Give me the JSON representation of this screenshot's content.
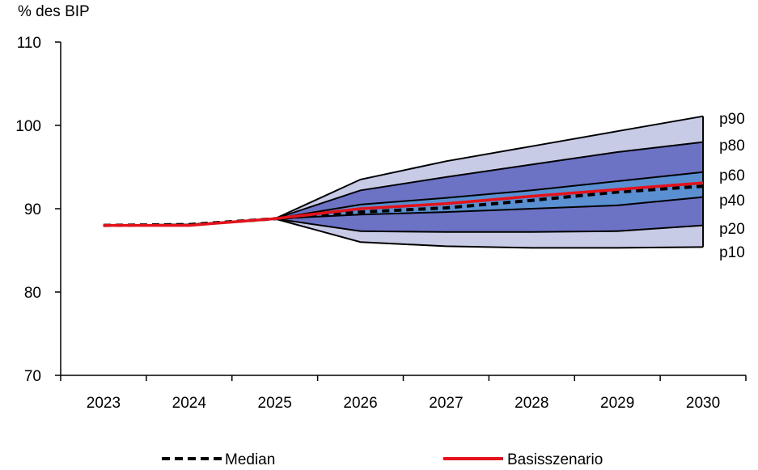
{
  "chart_data": {
    "type": "area",
    "ylabel": "% des BIP",
    "x": [
      "2023",
      "2024",
      "2025",
      "2026",
      "2027",
      "2028",
      "2029",
      "2030"
    ],
    "ylim": [
      70,
      110
    ],
    "yticks": [
      70,
      80,
      90,
      100,
      110
    ],
    "grid": false,
    "legend_position": "bottom",
    "percentiles": [
      {
        "name": "p90",
        "values": [
          88.0,
          88.1,
          88.8,
          93.5,
          95.7,
          97.5,
          99.3,
          101.1
        ]
      },
      {
        "name": "p80",
        "values": [
          88.0,
          88.1,
          88.8,
          92.2,
          93.8,
          95.3,
          96.8,
          98.0
        ]
      },
      {
        "name": "p60",
        "values": [
          88.0,
          88.1,
          88.8,
          90.5,
          91.3,
          92.2,
          93.3,
          94.4
        ]
      },
      {
        "name": "p40",
        "values": [
          88.0,
          88.1,
          88.8,
          89.3,
          89.6,
          90.0,
          90.4,
          91.4
        ]
      },
      {
        "name": "p20",
        "values": [
          88.0,
          88.1,
          88.8,
          87.3,
          87.2,
          87.2,
          87.3,
          88.0
        ]
      },
      {
        "name": "p10",
        "values": [
          88.0,
          88.1,
          88.8,
          86.0,
          85.5,
          85.3,
          85.3,
          85.4
        ]
      }
    ],
    "series": [
      {
        "name": "Median",
        "style": "dashed",
        "color": "#000000",
        "values": [
          88.0,
          88.1,
          88.8,
          89.6,
          90.1,
          91.0,
          92.0,
          92.7
        ]
      },
      {
        "name": "Basisszenario",
        "style": "solid",
        "color": "#e3121b",
        "values": [
          88.0,
          88.0,
          88.8,
          90.0,
          90.6,
          91.5,
          92.3,
          93.1
        ]
      }
    ],
    "band_colors": {
      "outer": "#c8cbe6",
      "middle": "#6c73c4",
      "inner": "#5a8fd1"
    }
  }
}
